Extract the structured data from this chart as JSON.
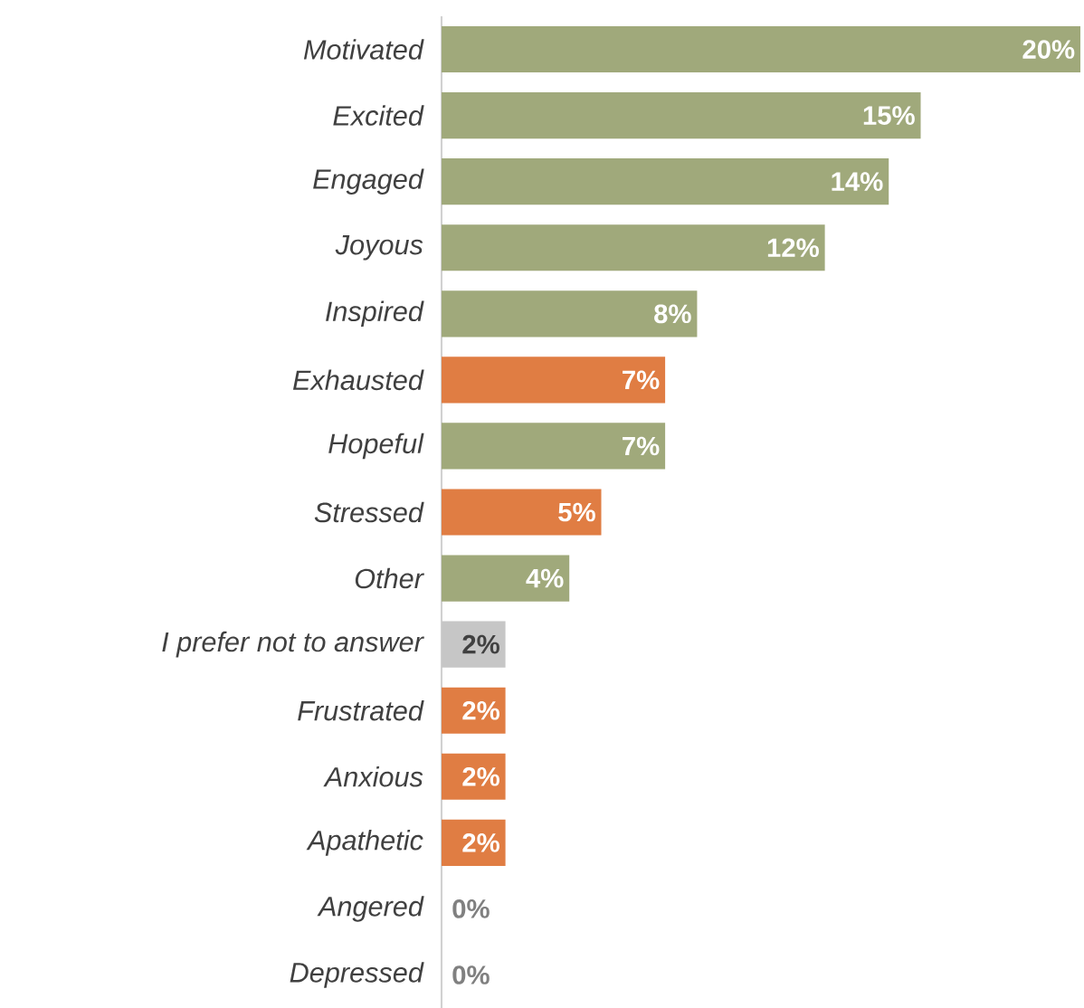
{
  "chart_data": {
    "type": "bar",
    "orientation": "horizontal",
    "categories": [
      "Motivated",
      "Excited",
      "Engaged",
      "Joyous",
      "Inspired",
      "Exhausted",
      "Hopeful",
      "Stressed",
      "Other",
      "I prefer not to answer",
      "Frustrated",
      "Anxious",
      "Apathetic",
      "Angered",
      "Depressed"
    ],
    "values": [
      20,
      15,
      14,
      12,
      8,
      7,
      7,
      5,
      4,
      2,
      2,
      2,
      2,
      0,
      0
    ],
    "colors": [
      "#a0a97b",
      "#a0a97b",
      "#a0a97b",
      "#a0a97b",
      "#a0a97b",
      "#e07d43",
      "#a0a97b",
      "#e07d43",
      "#a0a97b",
      "#c6c6c6",
      "#e07d43",
      "#e07d43",
      "#e07d43",
      "#a0a97b",
      "#a0a97b"
    ],
    "value_labels": [
      "20%",
      "15%",
      "14%",
      "12%",
      "8%",
      "7%",
      "7%",
      "5%",
      "4%",
      "2%",
      "2%",
      "2%",
      "2%",
      "0%",
      "0%"
    ]
  }
}
